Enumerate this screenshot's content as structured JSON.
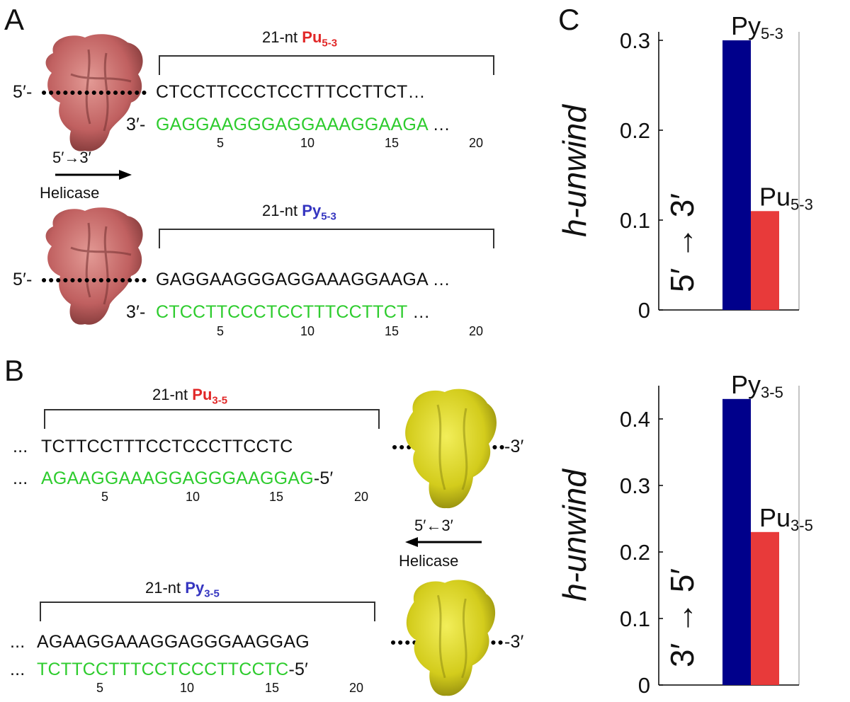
{
  "panels": {
    "A": {
      "letter": "A",
      "top": {
        "len_prefix": "21-nt ",
        "name": "Pu",
        "sub": "5-3",
        "strand1_end": "5′-",
        "strand1": "CTCCTTCCCTCCTTTCCTTCT",
        "strand1_tail": "…",
        "strand2_end": "3′-",
        "strand2": "GAGGAAGGGAGGAAAGGAAGA",
        "strand2_tail": " …",
        "ticks": [
          "5",
          "10",
          "15",
          "20"
        ]
      },
      "direction": "5′→3′",
      "direction_label": "Helicase",
      "bottom": {
        "len_prefix": "21-nt ",
        "name": "Py",
        "sub": "5-3",
        "strand1_end": "5′-",
        "strand1": "GAGGAAGGGAGGAAAGGAAGA",
        "strand1_tail": " …",
        "strand2_end": "3′-",
        "strand2": "CTCCTTCCCTCCTTTCCTTCT",
        "strand2_tail": " …",
        "ticks": [
          "5",
          "10",
          "15",
          "20"
        ]
      }
    },
    "B": {
      "letter": "B",
      "top": {
        "len_prefix": "21-nt ",
        "name": "Pu",
        "sub": "3-5",
        "strand1_lead": "...",
        "strand1": "TCTTCCTTTCCTCCCTTCCTC",
        "strand1_end": "-3′",
        "strand2_lead": "...",
        "strand2": "AGAAGGAAAGGAGGGAAGGAG",
        "strand2_end": "-5′",
        "ticks": [
          "5",
          "10",
          "15",
          "20"
        ]
      },
      "direction": "5′←3′",
      "direction_label": "Helicase",
      "bottom": {
        "len_prefix": "21-nt ",
        "name": "Py",
        "sub": "3-5",
        "strand1_lead": "...",
        "strand1": "AGAAGGAAAGGAGGGAAGGAG",
        "strand1_end": "-3′",
        "strand2_lead": "...",
        "strand2": "TCTTCCTTTCCTCCCTTCCTC",
        "strand2_end": "-5′",
        "ticks": [
          "5",
          "10",
          "15",
          "20"
        ]
      }
    },
    "C": {
      "letter": "C"
    }
  },
  "colors": {
    "red": "#e12828",
    "blue": "#3535c0",
    "green": "#2ecc2e",
    "bar_py": "#00008b",
    "bar_pu": "#e83a3a",
    "protein_salmon": "#c86a6a",
    "protein_yellow": "#d9d420"
  },
  "chart_data": [
    {
      "type": "bar",
      "ylabel": "h-unwind",
      "inner_label": "5′ → 3′",
      "ylim": [
        0,
        0.3
      ],
      "yticks": [
        "0",
        "0.1",
        "0.2",
        "0.3"
      ],
      "series": [
        {
          "name": "Py",
          "sub": "5-3",
          "values": [
            0.3
          ]
        },
        {
          "name": "Pu",
          "sub": "5-3",
          "values": [
            0.11
          ]
        }
      ]
    },
    {
      "type": "bar",
      "ylabel": "h-unwind",
      "inner_label": "3′ → 5′",
      "ylim": [
        0,
        0.45
      ],
      "yticks": [
        "0",
        "0.1",
        "0.2",
        "0.3",
        "0.4"
      ],
      "series": [
        {
          "name": "Py",
          "sub": "3-5",
          "values": [
            0.43
          ]
        },
        {
          "name": "Pu",
          "sub": "3-5",
          "values": [
            0.23
          ]
        }
      ]
    }
  ]
}
